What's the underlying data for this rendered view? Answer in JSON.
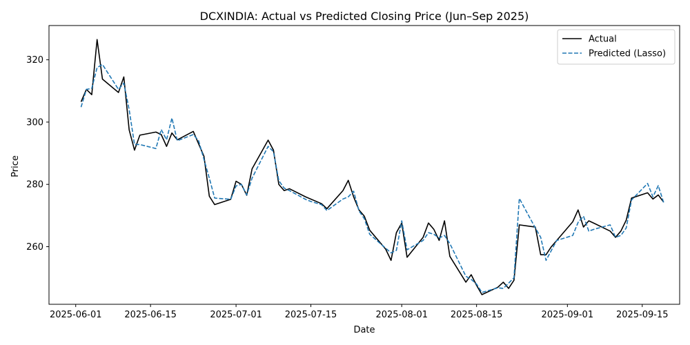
{
  "chart_data": {
    "type": "line",
    "title": "DCXINDIA: Actual vs Predicted Closing Price (Jun–Sep 2025)",
    "xlabel": "Date",
    "ylabel": "Price",
    "x_axis": "date",
    "xlim": [
      "2025-05-27",
      "2025-09-22"
    ],
    "ylim": [
      241.5,
      331
    ],
    "x_ticks": [
      "2025-06-01",
      "2025-06-15",
      "2025-07-01",
      "2025-07-15",
      "2025-08-01",
      "2025-08-15",
      "2025-09-01",
      "2025-09-15"
    ],
    "y_ticks": [
      260,
      280,
      300,
      320
    ],
    "grid": false,
    "legend": "top-right",
    "series": [
      {
        "name": "Actual",
        "color": "#000000",
        "dash": "solid",
        "points": [
          [
            "2025-06-02",
            306.5
          ],
          [
            "2025-06-03",
            310.5
          ],
          [
            "2025-06-04",
            308.8
          ],
          [
            "2025-06-05",
            326.5
          ],
          [
            "2025-06-06",
            313.8
          ],
          [
            "2025-06-09",
            309.5
          ],
          [
            "2025-06-10",
            314.5
          ],
          [
            "2025-06-11",
            297.5
          ],
          [
            "2025-06-12",
            291.0
          ],
          [
            "2025-06-13",
            295.8
          ],
          [
            "2025-06-16",
            296.8
          ],
          [
            "2025-06-17",
            296.0
          ],
          [
            "2025-06-18",
            292.2
          ],
          [
            "2025-06-19",
            296.5
          ],
          [
            "2025-06-20",
            294.3
          ],
          [
            "2025-06-23",
            297.0
          ],
          [
            "2025-06-24",
            293.0
          ],
          [
            "2025-06-25",
            289.0
          ],
          [
            "2025-06-26",
            276.2
          ],
          [
            "2025-06-27",
            273.5
          ],
          [
            "2025-06-30",
            275.2
          ],
          [
            "2025-07-01",
            281.0
          ],
          [
            "2025-07-02",
            280.0
          ],
          [
            "2025-07-03",
            276.5
          ],
          [
            "2025-07-04",
            285.0
          ],
          [
            "2025-07-07",
            294.2
          ],
          [
            "2025-07-08",
            291.0
          ],
          [
            "2025-07-09",
            280.0
          ],
          [
            "2025-07-10",
            278.0
          ],
          [
            "2025-07-11",
            278.6
          ],
          [
            "2025-07-14",
            276.0
          ],
          [
            "2025-07-17",
            273.8
          ],
          [
            "2025-07-18",
            272.2
          ],
          [
            "2025-07-21",
            278.0
          ],
          [
            "2025-07-22",
            281.3
          ],
          [
            "2025-07-23",
            276.0
          ],
          [
            "2025-07-24",
            271.8
          ],
          [
            "2025-07-25",
            269.8
          ],
          [
            "2025-07-26",
            265.3
          ],
          [
            "2025-07-29",
            259.2
          ],
          [
            "2025-07-30",
            255.6
          ],
          [
            "2025-07-31",
            264.5
          ],
          [
            "2025-08-01",
            267.6
          ],
          [
            "2025-08-02",
            256.6
          ],
          [
            "2025-08-05",
            263.0
          ],
          [
            "2025-08-06",
            267.6
          ],
          [
            "2025-08-07",
            265.6
          ],
          [
            "2025-08-08",
            262.0
          ],
          [
            "2025-08-09",
            268.3
          ],
          [
            "2025-08-10",
            256.9
          ],
          [
            "2025-08-13",
            248.6
          ],
          [
            "2025-08-14",
            251.0
          ],
          [
            "2025-08-15",
            247.6
          ],
          [
            "2025-08-16",
            244.6
          ],
          [
            "2025-08-19",
            247.0
          ],
          [
            "2025-08-20",
            248.6
          ],
          [
            "2025-08-21",
            246.6
          ],
          [
            "2025-08-22",
            249.2
          ],
          [
            "2025-08-23",
            267.0
          ],
          [
            "2025-08-26",
            266.3
          ],
          [
            "2025-08-27",
            257.4
          ],
          [
            "2025-08-28",
            257.4
          ],
          [
            "2025-08-29",
            260.0
          ],
          [
            "2025-08-30",
            262.0
          ],
          [
            "2025-09-02",
            268.0
          ],
          [
            "2025-09-03",
            271.8
          ],
          [
            "2025-09-04",
            266.3
          ],
          [
            "2025-09-05",
            268.3
          ],
          [
            "2025-09-06",
            267.5
          ],
          [
            "2025-09-09",
            265.0
          ],
          [
            "2025-09-10",
            263.0
          ],
          [
            "2025-09-11",
            265.0
          ],
          [
            "2025-09-12",
            268.5
          ],
          [
            "2025-09-13",
            275.6
          ],
          [
            "2025-09-16",
            277.3
          ],
          [
            "2025-09-17",
            275.3
          ],
          [
            "2025-09-18",
            276.6
          ],
          [
            "2025-09-19",
            274.3
          ]
        ]
      },
      {
        "name": "Predicted (Lasso)",
        "color": "#1f77b4",
        "dash": "dashed",
        "points": [
          [
            "2025-06-02",
            304.8
          ],
          [
            "2025-06-03",
            310.5
          ],
          [
            "2025-06-04",
            310.8
          ],
          [
            "2025-06-05",
            317.5
          ],
          [
            "2025-06-06",
            318.5
          ],
          [
            "2025-06-09",
            310.5
          ],
          [
            "2025-06-10",
            312.5
          ],
          [
            "2025-06-11",
            304.0
          ],
          [
            "2025-06-12",
            292.8
          ],
          [
            "2025-06-13",
            292.8
          ],
          [
            "2025-06-16",
            291.5
          ],
          [
            "2025-06-17",
            297.6
          ],
          [
            "2025-06-18",
            294.3
          ],
          [
            "2025-06-19",
            301.3
          ],
          [
            "2025-06-20",
            294.0
          ],
          [
            "2025-06-23",
            296.0
          ],
          [
            "2025-06-24",
            294.0
          ],
          [
            "2025-06-25",
            288.0
          ],
          [
            "2025-06-26",
            282.0
          ],
          [
            "2025-06-27",
            275.6
          ],
          [
            "2025-06-30",
            275.2
          ],
          [
            "2025-07-01",
            279.5
          ],
          [
            "2025-07-02",
            280.0
          ],
          [
            "2025-07-03",
            276.6
          ],
          [
            "2025-07-04",
            282.0
          ],
          [
            "2025-07-07",
            292.2
          ],
          [
            "2025-07-08",
            290.5
          ],
          [
            "2025-07-09",
            281.2
          ],
          [
            "2025-07-10",
            278.8
          ],
          [
            "2025-07-11",
            278.0
          ],
          [
            "2025-07-14",
            275.2
          ],
          [
            "2025-07-15",
            274.5
          ],
          [
            "2025-07-17",
            273.5
          ],
          [
            "2025-07-18",
            271.6
          ],
          [
            "2025-07-21",
            275.3
          ],
          [
            "2025-07-22",
            276.0
          ],
          [
            "2025-07-23",
            277.8
          ],
          [
            "2025-07-24",
            271.5
          ],
          [
            "2025-07-25",
            269.0
          ],
          [
            "2025-07-26",
            264.0
          ],
          [
            "2025-07-29",
            259.5
          ],
          [
            "2025-07-30",
            258.0
          ],
          [
            "2025-07-31",
            258.8
          ],
          [
            "2025-08-01",
            268.3
          ],
          [
            "2025-08-02",
            259.0
          ],
          [
            "2025-08-05",
            262.0
          ],
          [
            "2025-08-06",
            264.5
          ],
          [
            "2025-08-07",
            264.0
          ],
          [
            "2025-08-08",
            262.8
          ],
          [
            "2025-08-09",
            263.6
          ],
          [
            "2025-08-10",
            261.0
          ],
          [
            "2025-08-13",
            250.5
          ],
          [
            "2025-08-14",
            249.5
          ],
          [
            "2025-08-15",
            248.0
          ],
          [
            "2025-08-16",
            245.3
          ],
          [
            "2025-08-19",
            246.8
          ],
          [
            "2025-08-20",
            246.6
          ],
          [
            "2025-08-21",
            248.3
          ],
          [
            "2025-08-22",
            250.0
          ],
          [
            "2025-08-23",
            275.5
          ],
          [
            "2025-08-26",
            266.0
          ],
          [
            "2025-08-27",
            263.0
          ],
          [
            "2025-08-28",
            255.6
          ],
          [
            "2025-08-29",
            258.8
          ],
          [
            "2025-08-30",
            262.0
          ],
          [
            "2025-09-02",
            263.6
          ],
          [
            "2025-09-03",
            267.8
          ],
          [
            "2025-09-04",
            269.8
          ],
          [
            "2025-09-05",
            265.0
          ],
          [
            "2025-09-06",
            265.6
          ],
          [
            "2025-09-09",
            267.0
          ],
          [
            "2025-09-10",
            263.0
          ],
          [
            "2025-09-11",
            263.6
          ],
          [
            "2025-09-12",
            266.0
          ],
          [
            "2025-09-13",
            275.0
          ],
          [
            "2025-09-16",
            280.3
          ],
          [
            "2025-09-17",
            276.0
          ],
          [
            "2025-09-18",
            279.6
          ],
          [
            "2025-09-19",
            274.2
          ]
        ]
      }
    ]
  }
}
